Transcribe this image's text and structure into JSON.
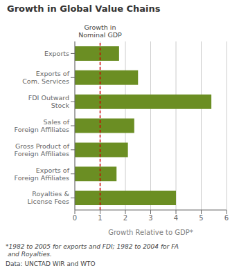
{
  "chart_data": {
    "type": "bar",
    "orientation": "horizontal",
    "title": "Growth in Global Value Chains",
    "categories": [
      "Exports",
      "Exports of\nCom. Services",
      "FDI Outward\nStock",
      "Sales of\nForeign Affiliates",
      "Gross Product of\nForeign Affiliates",
      "Exports of\nForeign Affiliates",
      "Royalties &\nLicense Fees"
    ],
    "values": [
      1.75,
      2.5,
      5.4,
      2.35,
      2.1,
      1.65,
      4.0
    ],
    "color": "#6b8e23",
    "xlim": [
      0,
      6
    ],
    "xticks": [
      0,
      1,
      2,
      3,
      4,
      5,
      6
    ],
    "xlabel": "Growth Relative to GDP*",
    "grid": true,
    "annotations": [
      {
        "text": "Growth in\nNominal GDP",
        "x": 1.0,
        "line_style": "dashed",
        "color": "#cc0000"
      }
    ],
    "footnote": "*1982 to 2005 for exports and FDI; 1982 to 2004 for FA\n and Royalties.",
    "source": "Data: UNCTAD WIR and WTO"
  }
}
